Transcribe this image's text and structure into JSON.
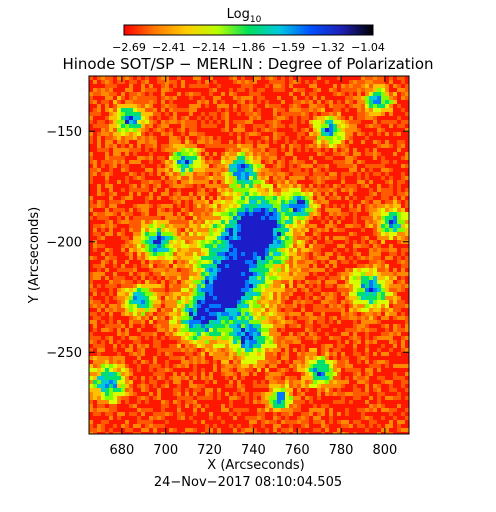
{
  "colorbar": {
    "label": "Log",
    "label_sub": "10",
    "tick_labels": [
      "−2.69",
      "−2.41",
      "−2.14",
      "−1.86",
      "−1.59",
      "−1.32",
      "−1.04"
    ],
    "colormap": [
      "#ff0000",
      "#ff7a00",
      "#ffcc00",
      "#b8ff00",
      "#00e05a",
      "#00c8e0",
      "#0050ff",
      "#1e1eb4",
      "#000000"
    ]
  },
  "chart_data": {
    "type": "heatmap",
    "title": "Hinode SOT/SP − MERLIN : Degree of Polarization",
    "xlabel": "X (Arcseconds)",
    "ylabel": "Y (Arcseconds)",
    "xlim": [
      665,
      811
    ],
    "ylim": [
      -287,
      -125
    ],
    "xticks": [
      680,
      700,
      720,
      740,
      760,
      780,
      800
    ],
    "xtick_labels": [
      "680",
      "700",
      "720",
      "740",
      "760",
      "780",
      "800"
    ],
    "yticks": [
      -150,
      -200,
      -250
    ],
    "ytick_labels": [
      "−150",
      "−200",
      "−250"
    ],
    "colorbar_range": [
      -2.69,
      -1.04
    ],
    "date": "24−Nov−2017 08:10:04.505"
  }
}
